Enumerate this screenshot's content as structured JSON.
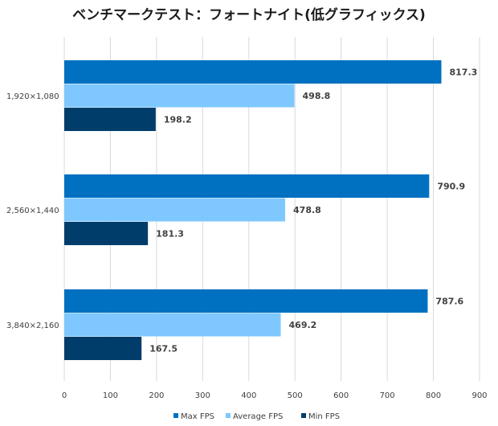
{
  "chart_data": {
    "type": "bar",
    "orientation": "horizontal",
    "title": "ベンチマークテスト：フォートナイト(低グラフィックス)",
    "categories": [
      "1,920×1,080",
      "2,560×1,440",
      "3,840×2,160"
    ],
    "series": [
      {
        "name": "Max FPS",
        "color": "#0070C0",
        "values": [
          817.3,
          790.9,
          787.6
        ],
        "labels": [
          "817.3",
          "790.9",
          "787.6"
        ]
      },
      {
        "name": "Average FPS",
        "color": "#7FC8FF",
        "values": [
          498.8,
          478.8,
          469.2
        ],
        "labels": [
          "498.8",
          "478.8",
          "469.2"
        ]
      },
      {
        "name": "Min FPS",
        "color": "#003D6B",
        "values": [
          198.2,
          181.3,
          167.5
        ],
        "labels": [
          "198.2",
          "181.3",
          "167.5"
        ]
      }
    ],
    "xlim": [
      0,
      900
    ],
    "xticks": [
      0,
      100,
      200,
      300,
      400,
      500,
      600,
      700,
      800,
      900
    ],
    "grid": true,
    "legend_position": "bottom"
  }
}
